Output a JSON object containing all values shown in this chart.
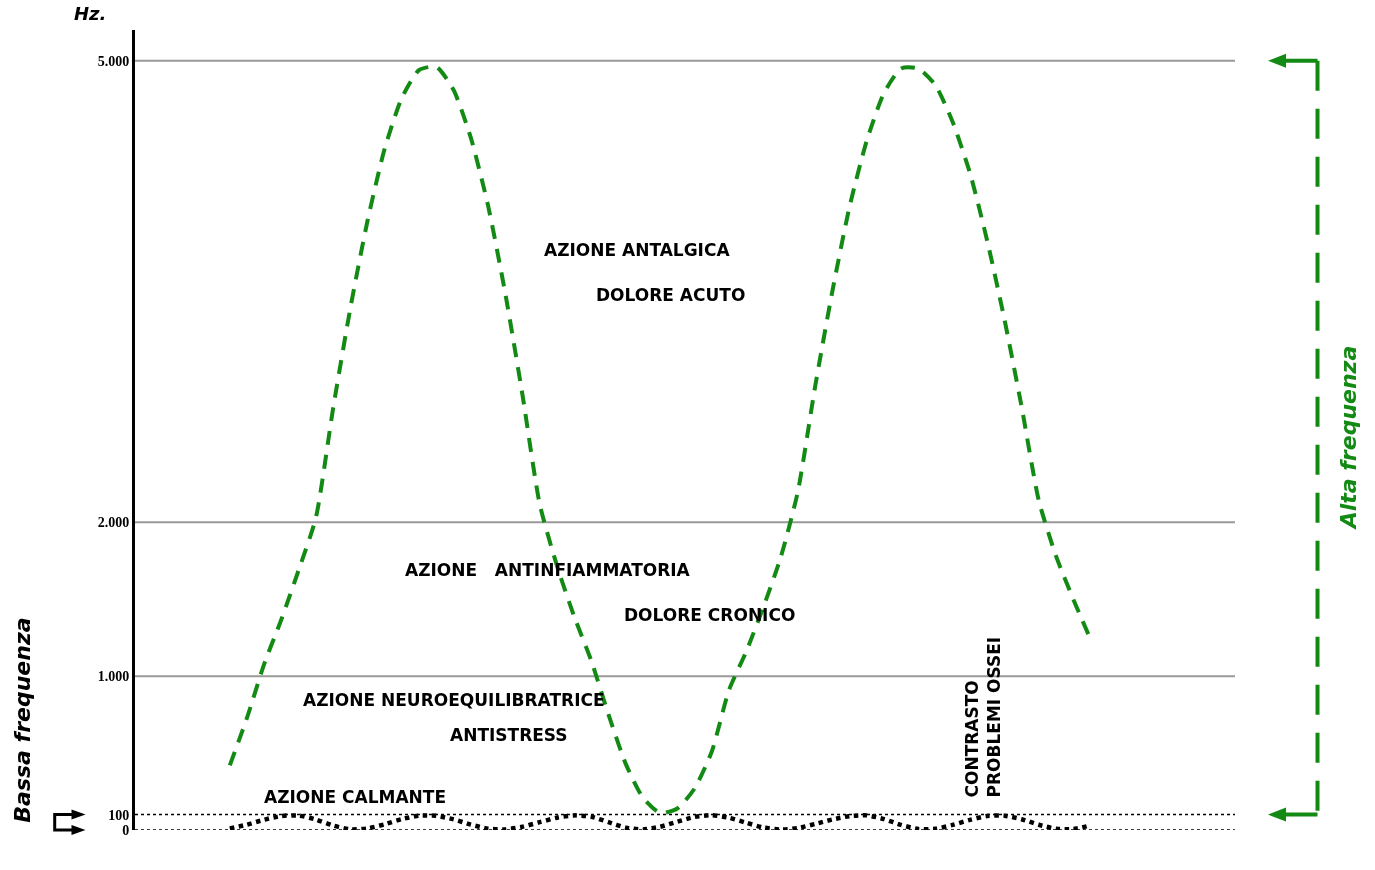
{
  "chart_data": {
    "type": "line",
    "ylabel": "Hz.",
    "categories": [
      null,
      null,
      null,
      null,
      null,
      null,
      null,
      null,
      null,
      null,
      null,
      null,
      null,
      null,
      null,
      null,
      null,
      null,
      null,
      null,
      null,
      null,
      null,
      null,
      null,
      null,
      null,
      null,
      null,
      null,
      null,
      null,
      null,
      null,
      null,
      null,
      null,
      null,
      null,
      null,
      null,
      null,
      null,
      null,
      null,
      null,
      null,
      null,
      null,
      null,
      null
    ],
    "series": [
      {
        "color": "#138a13",
        "line_style": "dashed",
        "values": [
          420,
          730,
          1080,
          1370,
          1690,
          2030,
          2740,
          3390,
          3960,
          4430,
          4760,
          4940,
          4960,
          4810,
          4500,
          4060,
          3490,
          2830,
          2120,
          1720,
          1390,
          1100,
          750,
          430,
          210,
          110,
          140,
          270,
          510,
          910,
          1160,
          1450,
          1770,
          2200,
          2880,
          3500,
          4050,
          4480,
          4790,
          4950,
          4950,
          4840,
          4600,
          4270,
          3830,
          3320,
          2750,
          2140,
          1780,
          1500,
          1240
        ]
      },
      {
        "color": "#000000",
        "line_style": "dotted",
        "values": [
          10,
          35,
          67,
          91,
          94,
          68,
          29,
          4,
          10,
          37,
          71,
          93,
          92,
          69,
          35,
          9,
          4,
          21,
          51,
          80,
          95,
          86,
          51,
          15,
          4,
          21,
          54,
          85,
          96,
          80,
          47,
          16,
          3,
          13,
          39,
          68,
          90,
          95,
          71,
          33,
          6,
          8,
          33,
          66,
          91,
          93,
          70,
          34,
          8,
          6,
          29
        ]
      }
    ],
    "ylim": [
      0,
      5200
    ],
    "yticks": [
      {
        "value": 0,
        "label": "0"
      },
      {
        "value": 100,
        "label": "100"
      },
      {
        "value": 1000,
        "label": "1.000"
      },
      {
        "value": 2000,
        "label": "2.000"
      },
      {
        "value": 5000,
        "label": "5.000"
      }
    ],
    "grid": false,
    "marker": "none",
    "ref_lines": [
      {
        "axis": "y",
        "value": 0,
        "color": "#000000",
        "line_style": "dotted"
      },
      {
        "axis": "y",
        "value": 100,
        "color": "#000000",
        "line_style": "dotted"
      },
      {
        "axis": "y",
        "value": 1000,
        "color": "#999999",
        "line_style": "solid"
      },
      {
        "axis": "y",
        "value": 2000,
        "color": "#999999",
        "line_style": "solid"
      },
      {
        "axis": "y",
        "value": 5000,
        "color": "#999999",
        "line_style": "solid"
      }
    ],
    "annotations": [
      "AZIONE ANTALGICA",
      "DOLORE ACUTO",
      "AZIONE   ANTINFIAMMATORIA",
      "DOLORE CRONICO",
      "AZIONE NEUROEQUILIBRATRICE",
      "ANTISTRESS",
      "AZIONE CALMANTE",
      "CONTRASTO\nPROBLEMI OSSEI",
      "Alta frequenza",
      "Bassa frequenza"
    ]
  }
}
